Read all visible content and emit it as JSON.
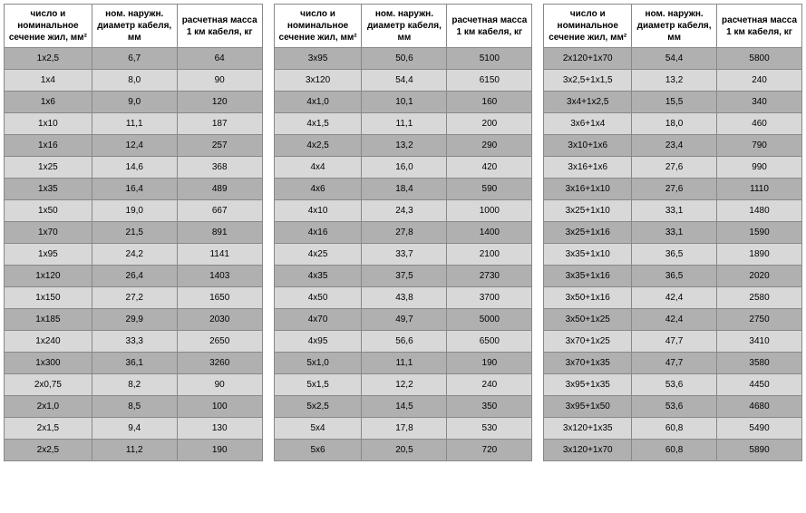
{
  "headers": {
    "col1": "число и номинальное сечение жил, мм²",
    "col2": "ном. наружн. диаметр кабеля, мм",
    "col3": "расчетная масса 1 км кабеля, кг"
  },
  "table1": {
    "rows": [
      [
        "1x2,5",
        "6,7",
        "64"
      ],
      [
        "1x4",
        "8,0",
        "90"
      ],
      [
        "1x6",
        "9,0",
        "120"
      ],
      [
        "1x10",
        "11,1",
        "187"
      ],
      [
        "1x16",
        "12,4",
        "257"
      ],
      [
        "1x25",
        "14,6",
        "368"
      ],
      [
        "1x35",
        "16,4",
        "489"
      ],
      [
        "1x50",
        "19,0",
        "667"
      ],
      [
        "1x70",
        "21,5",
        "891"
      ],
      [
        "1x95",
        "24,2",
        "1141"
      ],
      [
        "1x120",
        "26,4",
        "1403"
      ],
      [
        "1x150",
        "27,2",
        "1650"
      ],
      [
        "1x185",
        "29,9",
        "2030"
      ],
      [
        "1x240",
        "33,3",
        "2650"
      ],
      [
        "1x300",
        "36,1",
        "3260"
      ],
      [
        "2x0,75",
        "8,2",
        "90"
      ],
      [
        "2x1,0",
        "8,5",
        "100"
      ],
      [
        "2x1,5",
        "9,4",
        "130"
      ],
      [
        "2x2,5",
        "11,2",
        "190"
      ]
    ]
  },
  "table2": {
    "rows": [
      [
        "3x95",
        "50,6",
        "5100"
      ],
      [
        "3x120",
        "54,4",
        "6150"
      ],
      [
        "4x1,0",
        "10,1",
        "160"
      ],
      [
        "4x1,5",
        "11,1",
        "200"
      ],
      [
        "4x2,5",
        "13,2",
        "290"
      ],
      [
        "4x4",
        "16,0",
        "420"
      ],
      [
        "4x6",
        "18,4",
        "590"
      ],
      [
        "4x10",
        "24,3",
        "1000"
      ],
      [
        "4x16",
        "27,8",
        "1400"
      ],
      [
        "4x25",
        "33,7",
        "2100"
      ],
      [
        "4x35",
        "37,5",
        "2730"
      ],
      [
        "4x50",
        "43,8",
        "3700"
      ],
      [
        "4x70",
        "49,7",
        "5000"
      ],
      [
        "4x95",
        "56,6",
        "6500"
      ],
      [
        "5x1,0",
        "11,1",
        "190"
      ],
      [
        "5x1,5",
        "12,2",
        "240"
      ],
      [
        "5x2,5",
        "14,5",
        "350"
      ],
      [
        "5x4",
        "17,8",
        "530"
      ],
      [
        "5x6",
        "20,5",
        "720"
      ]
    ]
  },
  "table3": {
    "rows": [
      [
        "2x120+1x70",
        "54,4",
        "5800"
      ],
      [
        "3x2,5+1x1,5",
        "13,2",
        "240"
      ],
      [
        "3x4+1x2,5",
        "15,5",
        "340"
      ],
      [
        "3x6+1x4",
        "18,0",
        "460"
      ],
      [
        "3x10+1x6",
        "23,4",
        "790"
      ],
      [
        "3x16+1x6",
        "27,6",
        "990"
      ],
      [
        "3x16+1x10",
        "27,6",
        "1110"
      ],
      [
        "3x25+1x10",
        "33,1",
        "1480"
      ],
      [
        "3x25+1x16",
        "33,1",
        "1590"
      ],
      [
        "3x35+1x10",
        "36,5",
        "1890"
      ],
      [
        "3x35+1x16",
        "36,5",
        "2020"
      ],
      [
        "3x50+1x16",
        "42,4",
        "2580"
      ],
      [
        "3x50+1x25",
        "42,4",
        "2750"
      ],
      [
        "3x70+1x25",
        "47,7",
        "3410"
      ],
      [
        "3x70+1x35",
        "47,7",
        "3580"
      ],
      [
        "3x95+1x35",
        "53,6",
        "4450"
      ],
      [
        "3x95+1x50",
        "53,6",
        "4680"
      ],
      [
        "3x120+1x35",
        "60,8",
        "5490"
      ],
      [
        "3x120+1x70",
        "60,8",
        "5890"
      ]
    ]
  }
}
